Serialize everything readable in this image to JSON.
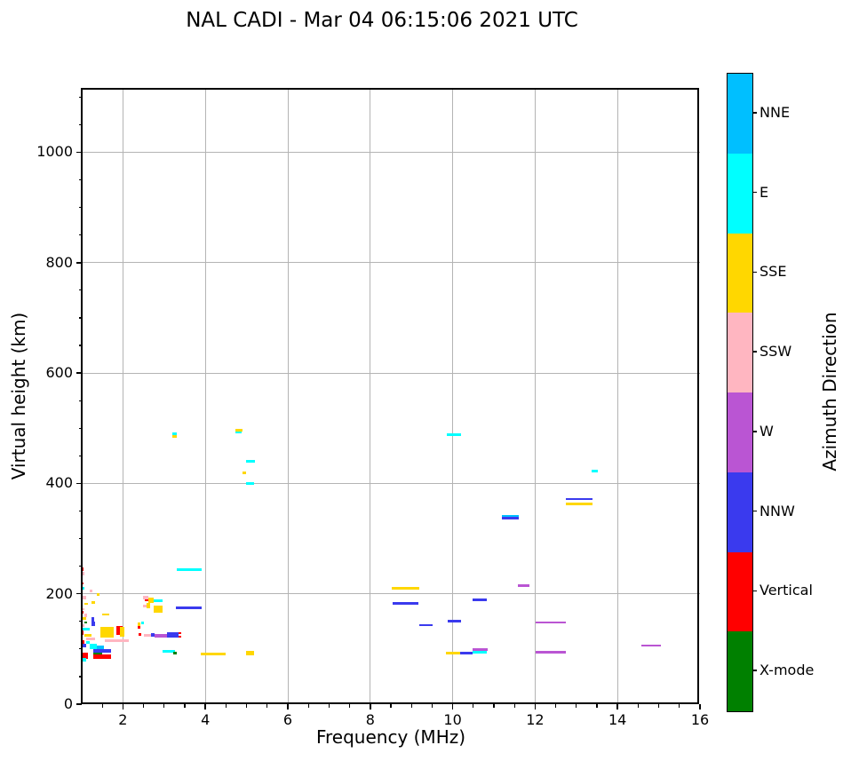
{
  "title": "NAL CADI - Mar 04 06:15:06 2021 UTC",
  "chart_data": {
    "type": "scatter",
    "title": "NAL CADI - Mar 04 06:15:06 2021 UTC",
    "xlabel": "Frequency (MHz)",
    "ylabel": "Virtual height (km)",
    "xlim": [
      1,
      16
    ],
    "ylim": [
      0,
      1115
    ],
    "xticks": [
      2,
      4,
      6,
      8,
      10,
      12,
      14,
      16
    ],
    "yticks": [
      0,
      200,
      400,
      600,
      800,
      1000
    ],
    "x_minor_step": 0.5,
    "y_minor_step": 50,
    "grid": true,
    "colorbar": {
      "label": "Azimuth Direction",
      "categories": [
        "NNE",
        "E",
        "SSE",
        "SSW",
        "W",
        "NNW",
        "Vertical",
        "X-mode"
      ],
      "colors": {
        "NNE": "#00BFFF",
        "E": "#00FFFF",
        "SSE": "#FFD700",
        "SSW": "#FFB6C1",
        "W": "#BA55D3",
        "NNW": "#3A3AEE",
        "Vertical": "#FF0000",
        "X-mode": "#008000"
      }
    },
    "segments": [
      [
        3.31,
        3.91,
        246,
        241,
        "E"
      ],
      [
        3.29,
        3.91,
        177,
        172,
        "NNW"
      ],
      [
        3.89,
        4.49,
        93,
        88,
        "SSE"
      ],
      [
        4.99,
        5.18,
        96,
        88,
        "SSE"
      ],
      [
        3.2,
        3.31,
        493,
        488,
        "E"
      ],
      [
        3.2,
        3.31,
        488,
        483,
        "SSE"
      ],
      [
        4.73,
        4.9,
        499,
        494,
        "SSE"
      ],
      [
        4.73,
        4.88,
        494,
        490,
        "E"
      ],
      [
        4.99,
        5.2,
        443,
        438,
        "E"
      ],
      [
        4.9,
        4.99,
        422,
        417,
        "SSE"
      ],
      [
        4.99,
        5.18,
        402,
        397,
        "E"
      ],
      [
        9.86,
        10.2,
        490,
        486,
        "E"
      ],
      [
        13.37,
        13.52,
        425,
        420,
        "E"
      ],
      [
        12.75,
        13.39,
        374,
        370,
        "NNW"
      ],
      [
        12.75,
        13.39,
        366,
        360,
        "SSE"
      ],
      [
        11.19,
        11.6,
        342,
        339,
        "NNE"
      ],
      [
        11.19,
        11.6,
        339,
        335,
        "NNW"
      ],
      [
        11.58,
        11.86,
        218,
        213,
        "W"
      ],
      [
        8.52,
        9.19,
        213,
        208,
        "SSE"
      ],
      [
        8.54,
        9.17,
        185,
        181,
        "NNW"
      ],
      [
        10.48,
        10.83,
        192,
        187,
        "NNW"
      ],
      [
        9.88,
        10.2,
        153,
        148,
        "NNW"
      ],
      [
        9.19,
        9.51,
        145,
        142,
        "NNW"
      ],
      [
        12.01,
        12.75,
        150,
        146,
        "W"
      ],
      [
        12.01,
        12.75,
        97,
        92,
        "W"
      ],
      [
        14.58,
        15.05,
        108,
        104,
        "W"
      ],
      [
        9.84,
        10.18,
        95,
        90,
        "SSE"
      ],
      [
        10.18,
        10.48,
        95,
        90,
        "NNW"
      ],
      [
        10.48,
        10.83,
        97,
        92,
        "E"
      ],
      [
        10.48,
        10.85,
        101,
        97,
        "W"
      ],
      [
        2.96,
        3.26,
        98,
        93,
        "E"
      ],
      [
        3.22,
        3.31,
        95,
        90,
        "X-mode"
      ],
      [
        2.49,
        2.62,
        196,
        190,
        "SSW"
      ],
      [
        2.53,
        2.62,
        190,
        187,
        "Vertical"
      ],
      [
        2.62,
        2.75,
        193,
        184,
        "SSE"
      ],
      [
        2.75,
        2.96,
        190,
        185,
        "E"
      ],
      [
        2.49,
        2.57,
        180,
        175,
        "SSW"
      ],
      [
        2.57,
        2.66,
        184,
        174,
        "SSE"
      ],
      [
        2.75,
        2.96,
        179,
        166,
        "SSE"
      ],
      [
        2.38,
        2.44,
        129,
        124,
        "Vertical"
      ],
      [
        2.51,
        2.68,
        127,
        122,
        "SSW"
      ],
      [
        2.68,
        2.77,
        129,
        122,
        "NNW"
      ],
      [
        2.77,
        3.07,
        127,
        121,
        "W"
      ],
      [
        3.07,
        3.35,
        130,
        121,
        "NNW"
      ],
      [
        3.35,
        3.41,
        130,
        127,
        "Vertical"
      ],
      [
        3.35,
        3.41,
        124,
        121,
        "Vertical"
      ],
      [
        2.36,
        2.42,
        148,
        141,
        "SSE"
      ],
      [
        2.36,
        2.42,
        141,
        137,
        "Vertical"
      ],
      [
        2.44,
        2.51,
        150,
        145,
        "E"
      ],
      [
        1.0,
        1.05,
        248,
        241,
        "Vertical"
      ],
      [
        1.0,
        1.06,
        240,
        234,
        "SSW"
      ],
      [
        1.0,
        1.04,
        221,
        217,
        "Vertical"
      ],
      [
        1.0,
        1.06,
        212,
        208,
        "E"
      ],
      [
        1.19,
        1.26,
        208,
        203,
        "SSW"
      ],
      [
        1.37,
        1.43,
        201,
        196,
        "SSE"
      ],
      [
        1.02,
        1.11,
        196,
        190,
        "SSW"
      ],
      [
        1.06,
        1.15,
        184,
        180,
        "SSE"
      ],
      [
        1.24,
        1.32,
        187,
        182,
        "SSE"
      ],
      [
        1.02,
        1.06,
        174,
        171,
        "SSW"
      ],
      [
        1.0,
        1.04,
        169,
        164,
        "Vertical"
      ],
      [
        1.06,
        1.13,
        164,
        158,
        "SSW"
      ],
      [
        1.5,
        1.67,
        164,
        161,
        "SSE"
      ],
      [
        1.02,
        1.11,
        158,
        153,
        "SSE"
      ],
      [
        1.24,
        1.3,
        158,
        150,
        "NNW"
      ],
      [
        1.06,
        1.13,
        150,
        146,
        "X-mode"
      ],
      [
        1.24,
        1.32,
        150,
        142,
        "NNW"
      ],
      [
        1.0,
        1.06,
        145,
        140,
        "SSW"
      ],
      [
        1.02,
        1.19,
        138,
        134,
        "E"
      ],
      [
        1.0,
        1.04,
        134,
        126,
        "Vertical"
      ],
      [
        1.45,
        1.78,
        140,
        121,
        "SSE"
      ],
      [
        1.84,
        1.99,
        142,
        126,
        "Vertical"
      ],
      [
        1.93,
        2.03,
        140,
        122,
        "SSE"
      ],
      [
        1.06,
        1.24,
        127,
        122,
        "SSE"
      ],
      [
        1.11,
        1.32,
        121,
        116,
        "SSW"
      ],
      [
        1.56,
        2.14,
        117,
        113,
        "SSW"
      ],
      [
        1.0,
        1.06,
        116,
        109,
        "Vertical"
      ],
      [
        1.11,
        1.19,
        114,
        109,
        "E"
      ],
      [
        1.02,
        1.11,
        109,
        103,
        "NNW"
      ],
      [
        1.19,
        1.37,
        109,
        100,
        "E"
      ],
      [
        1.37,
        1.54,
        106,
        100,
        "NNE"
      ],
      [
        1.28,
        1.71,
        100,
        93,
        "NNW"
      ],
      [
        1.28,
        1.5,
        93,
        90,
        "X-mode"
      ],
      [
        1.28,
        1.71,
        90,
        82,
        "Vertical"
      ],
      [
        1.0,
        1.15,
        93,
        82,
        "Vertical"
      ],
      [
        1.0,
        1.11,
        84,
        77,
        "E"
      ]
    ]
  }
}
